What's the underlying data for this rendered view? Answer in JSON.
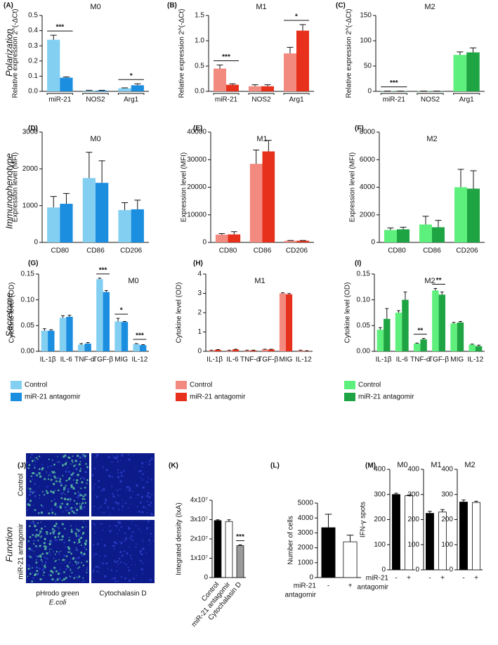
{
  "row_labels": [
    "Polarization",
    "Immunophenotype",
    "Secretome",
    "Function"
  ],
  "images": {
    "panel": "(J)",
    "rows": [
      "Control",
      "miR-21 antagomir"
    ],
    "columns": [
      [
        "pHrodo green",
        "E.coli"
      ],
      [
        "Cytochalasin D"
      ]
    ]
  },
  "chart_data": [
    {
      "type": "bar",
      "panel": "(A)",
      "title": "M0",
      "ylabel": "Relative expression 2^(-ΔCt)",
      "categories": [
        "miR-21",
        "NOS2",
        "Arg1"
      ],
      "group_brackets": true,
      "series": [
        {
          "color": "#82cff2",
          "values": [
            0.34,
            0.005,
            0.02
          ],
          "errors": [
            0.03,
            0.002,
            0.003
          ]
        },
        {
          "color": "#1b8ee0",
          "values": [
            0.09,
            0.005,
            0.04
          ],
          "errors": [
            0.005,
            0.002,
            0.01
          ]
        }
      ],
      "ylim": [
        0,
        0.5
      ],
      "yticks": [
        {
          "value": 0,
          "label": "0.0"
        },
        0.1,
        0.2,
        0.3,
        0.4,
        0.5
      ],
      "annotations": [
        {
          "text": "***",
          "category": 0
        },
        {
          "text": "*",
          "category": 2
        }
      ]
    },
    {
      "type": "bar",
      "panel": "(B)",
      "title": "M1",
      "ylabel": "Relative expression 2^(-ΔCt)",
      "categories": [
        "miR-21",
        "NOS2",
        "Arg1"
      ],
      "group_brackets": true,
      "series": [
        {
          "color": "#f28a80",
          "values": [
            0.45,
            0.1,
            0.75
          ],
          "errors": [
            0.07,
            0.03,
            0.12
          ]
        },
        {
          "color": "#e8311c",
          "values": [
            0.13,
            0.1,
            1.2
          ],
          "errors": [
            0.02,
            0.03,
            0.12
          ]
        }
      ],
      "ylim": [
        0,
        1.5
      ],
      "yticks": [
        {
          "value": 0,
          "label": "0.0"
        },
        0.5,
        {
          "value": 1,
          "label": "1.0"
        },
        1.5
      ],
      "annotations": [
        {
          "text": "***",
          "category": 0
        },
        {
          "text": "*",
          "category": 2
        }
      ]
    },
    {
      "type": "bar",
      "panel": "(C)",
      "title": "M2",
      "ylabel": "Relative expression 2^(-ΔCt)",
      "categories": [
        "miR-21",
        "NOS2",
        "Arg1"
      ],
      "group_brackets": true,
      "series": [
        {
          "color": "#5ef07c",
          "values": [
            0.5,
            0.5,
            72
          ],
          "errors": [
            0.1,
            0.1,
            6
          ]
        },
        {
          "color": "#1fa443",
          "values": [
            0.5,
            0.5,
            77
          ],
          "errors": [
            0.1,
            0.1,
            9
          ]
        }
      ],
      "ylim": [
        0,
        150
      ],
      "yticks": [
        0,
        50,
        100,
        150
      ],
      "annotations": [
        {
          "text": "***",
          "category": 0
        }
      ]
    },
    {
      "type": "bar",
      "panel": "(D)",
      "title": "M0",
      "ylabel": "Expression level (MFI)",
      "categories": [
        "CD80",
        "CD86",
        "CD206"
      ],
      "series": [
        {
          "color": "#82cff2",
          "values": [
            950,
            1750,
            880
          ],
          "errors": [
            300,
            700,
            200
          ]
        },
        {
          "color": "#1b8ee0",
          "values": [
            1050,
            1620,
            900
          ],
          "errors": [
            280,
            600,
            250
          ]
        }
      ],
      "ylim": [
        0,
        3000
      ],
      "yticks": [
        0,
        1000,
        2000,
        3000
      ]
    },
    {
      "type": "bar",
      "panel": "(E)",
      "title": "M1",
      "ylabel": "Expression level (MFI)",
      "categories": [
        "CD80",
        "CD86",
        "CD206"
      ],
      "series": [
        {
          "color": "#f28a80",
          "values": [
            2800,
            28500,
            600
          ],
          "errors": [
            400,
            5000,
            100
          ]
        },
        {
          "color": "#e8311c",
          "values": [
            2900,
            33000,
            600
          ],
          "errors": [
            1000,
            4000,
            100
          ]
        }
      ],
      "ylim": [
        0,
        40000
      ],
      "yticks": [
        0,
        10000,
        20000,
        30000,
        40000
      ]
    },
    {
      "type": "bar",
      "panel": "(F)",
      "title": "M2",
      "ylabel": "Expression level (MFI)",
      "categories": [
        "CD80",
        "CD86",
        "CD206"
      ],
      "series": [
        {
          "color": "#5ef07c",
          "values": [
            900,
            1300,
            4000
          ],
          "errors": [
            150,
            600,
            1300
          ]
        },
        {
          "color": "#1fa443",
          "values": [
            950,
            1100,
            3900
          ],
          "errors": [
            150,
            500,
            1300
          ]
        }
      ],
      "ylim": [
        0,
        8000
      ],
      "yticks": [
        0,
        2000,
        4000,
        6000,
        8000
      ]
    },
    {
      "type": "bar",
      "panel": "(G)",
      "title": "M0",
      "ylabel": "Cytokine level (OD)",
      "categories": [
        "IL-1β",
        "IL-6",
        "TNF-α",
        "TGF-β",
        "MIG",
        "IL-12"
      ],
      "legend": "below",
      "series": [
        {
          "name": "Control",
          "color": "#82cff2",
          "values": [
            0.04,
            0.065,
            0.013,
            0.14,
            0.058,
            0.014
          ],
          "errors": [
            0.004,
            0.004,
            0.002,
            0.002,
            0.006,
            0.001
          ]
        },
        {
          "name": "miR-21 antagomir",
          "color": "#1b8ee0",
          "values": [
            0.04,
            0.067,
            0.015,
            0.115,
            0.057,
            0.012
          ],
          "errors": [
            0.002,
            0.003,
            0.002,
            0.003,
            0.001,
            0.001
          ]
        }
      ],
      "ylim": [
        0,
        0.15
      ],
      "yticks": [
        {
          "value": 0,
          "label": "0.00"
        },
        0.05,
        {
          "value": 0.1,
          "label": "0.10"
        },
        0.15
      ],
      "annotations": [
        {
          "text": "***",
          "category": 3
        },
        {
          "text": "*",
          "category": 4
        },
        {
          "text": "***",
          "category": 5
        }
      ]
    },
    {
      "type": "bar",
      "panel": "(H)",
      "title": "M1",
      "ylabel": "Cytokine level (OD)",
      "categories": [
        "IL-1β",
        "IL-6",
        "TNF-α",
        "TGF-β",
        "MIG",
        "IL-12"
      ],
      "legend": "below",
      "series": [
        {
          "name": "Control",
          "color": "#f28a80",
          "values": [
            0.05,
            0.05,
            0.05,
            0.1,
            3.0,
            0.05
          ],
          "errors": [
            0.01,
            0.01,
            0.01,
            0.01,
            0.03,
            0.01
          ]
        },
        {
          "name": "miR-21 antagomir",
          "color": "#e8311c",
          "values": [
            0.08,
            0.1,
            0.05,
            0.1,
            2.95,
            0.02
          ],
          "errors": [
            0.01,
            0.01,
            0.01,
            0.01,
            0.04,
            0.01
          ]
        }
      ],
      "ylim": [
        0,
        4
      ],
      "yticks": [
        0,
        1,
        2,
        3,
        4
      ]
    },
    {
      "type": "bar",
      "panel": "(I)",
      "title": "M2",
      "ylabel": "Cytokine level (OD)",
      "categories": [
        "IL-1β",
        "IL-6",
        "TNF-α",
        "TGF-β",
        "MIG",
        "IL-12"
      ],
      "legend": "below",
      "series": [
        {
          "name": "Control",
          "color": "#5ef07c",
          "values": [
            0.042,
            0.075,
            0.015,
            0.118,
            0.054,
            0.013
          ],
          "errors": [
            0.004,
            0.004,
            0.001,
            0.004,
            0.002,
            0.001
          ]
        },
        {
          "name": "miR-21 antagomir",
          "color": "#1fa443",
          "values": [
            0.063,
            0.1,
            0.023,
            0.11,
            0.056,
            0.01
          ],
          "errors": [
            0.02,
            0.015,
            0.002,
            0.005,
            0.002,
            0.002
          ]
        }
      ],
      "ylim": [
        0,
        0.15
      ],
      "yticks": [
        {
          "value": 0,
          "label": "0.00"
        },
        0.05,
        {
          "value": 0.1,
          "label": "0.10"
        },
        0.15
      ],
      "annotations": [
        {
          "text": "**",
          "category": 2
        },
        {
          "text": "**",
          "category": 3
        }
      ]
    },
    {
      "type": "bar",
      "panel": "(K)",
      "ylabel": "Integrated density (IxA)",
      "categories": [
        "Control",
        "miR-21 antagomir",
        "Cytochalasin D"
      ],
      "xtick_rotation": -50,
      "series": [
        {
          "colors": [
            "#000000",
            "#ffffff",
            "#9a9a9a"
          ],
          "values": [
            29500000,
            29000000,
            16500000
          ],
          "errors": [
            400000,
            900000,
            400000
          ]
        }
      ],
      "ylim": [
        0,
        40000000
      ],
      "yticks": [
        0,
        {
          "value": 10000000,
          "label": "1x10⁷"
        },
        {
          "value": 20000000,
          "label": "2x10⁷"
        },
        {
          "value": 30000000,
          "label": "3x10⁷"
        },
        {
          "value": 40000000,
          "label": "4x10⁷"
        }
      ],
      "annotations": [
        {
          "text": "***",
          "category": 2
        }
      ]
    },
    {
      "type": "bar",
      "panel": "(L)",
      "ylabel": "Number of cells",
      "categories": [
        "-",
        "+"
      ],
      "xlabel": [
        "miR-21",
        "antagomir"
      ],
      "series": [
        {
          "colors": [
            "#000000",
            "#ffffff"
          ],
          "values": [
            3350,
            2400
          ],
          "errors": [
            900,
            450
          ]
        }
      ],
      "ylim": [
        0,
        5000
      ],
      "yticks": [
        0,
        1000,
        2000,
        3000,
        4000,
        5000
      ]
    },
    {
      "type": "bar",
      "panel": "(M)",
      "title": "M0",
      "ylabel": "IFN-γ spots",
      "categories": [
        "-",
        "+"
      ],
      "xlabel": [
        "miR-21",
        "antagomir"
      ],
      "series": [
        {
          "colors": [
            "#000000",
            "#ffffff"
          ],
          "values": [
            300,
            295
          ],
          "errors": [
            5,
            3
          ]
        }
      ],
      "ylim": [
        0,
        400
      ],
      "yticks": [
        0,
        100,
        200,
        300,
        400
      ]
    },
    {
      "type": "bar",
      "title": "M1",
      "categories": [
        "-",
        "+"
      ],
      "series": [
        {
          "colors": [
            "#000000",
            "#ffffff"
          ],
          "values": [
            225,
            230
          ],
          "errors": [
            8,
            10
          ]
        }
      ],
      "ylim": [
        0,
        400
      ],
      "yticks": [
        0,
        100,
        200,
        300,
        400
      ]
    },
    {
      "type": "bar",
      "title": "M2",
      "categories": [
        "-",
        "+"
      ],
      "series": [
        {
          "colors": [
            "#000000",
            "#ffffff"
          ],
          "values": [
            270,
            268
          ],
          "errors": [
            8,
            5
          ]
        }
      ],
      "ylim": [
        0,
        400
      ],
      "yticks": [
        0,
        100,
        200,
        300,
        400
      ]
    }
  ]
}
